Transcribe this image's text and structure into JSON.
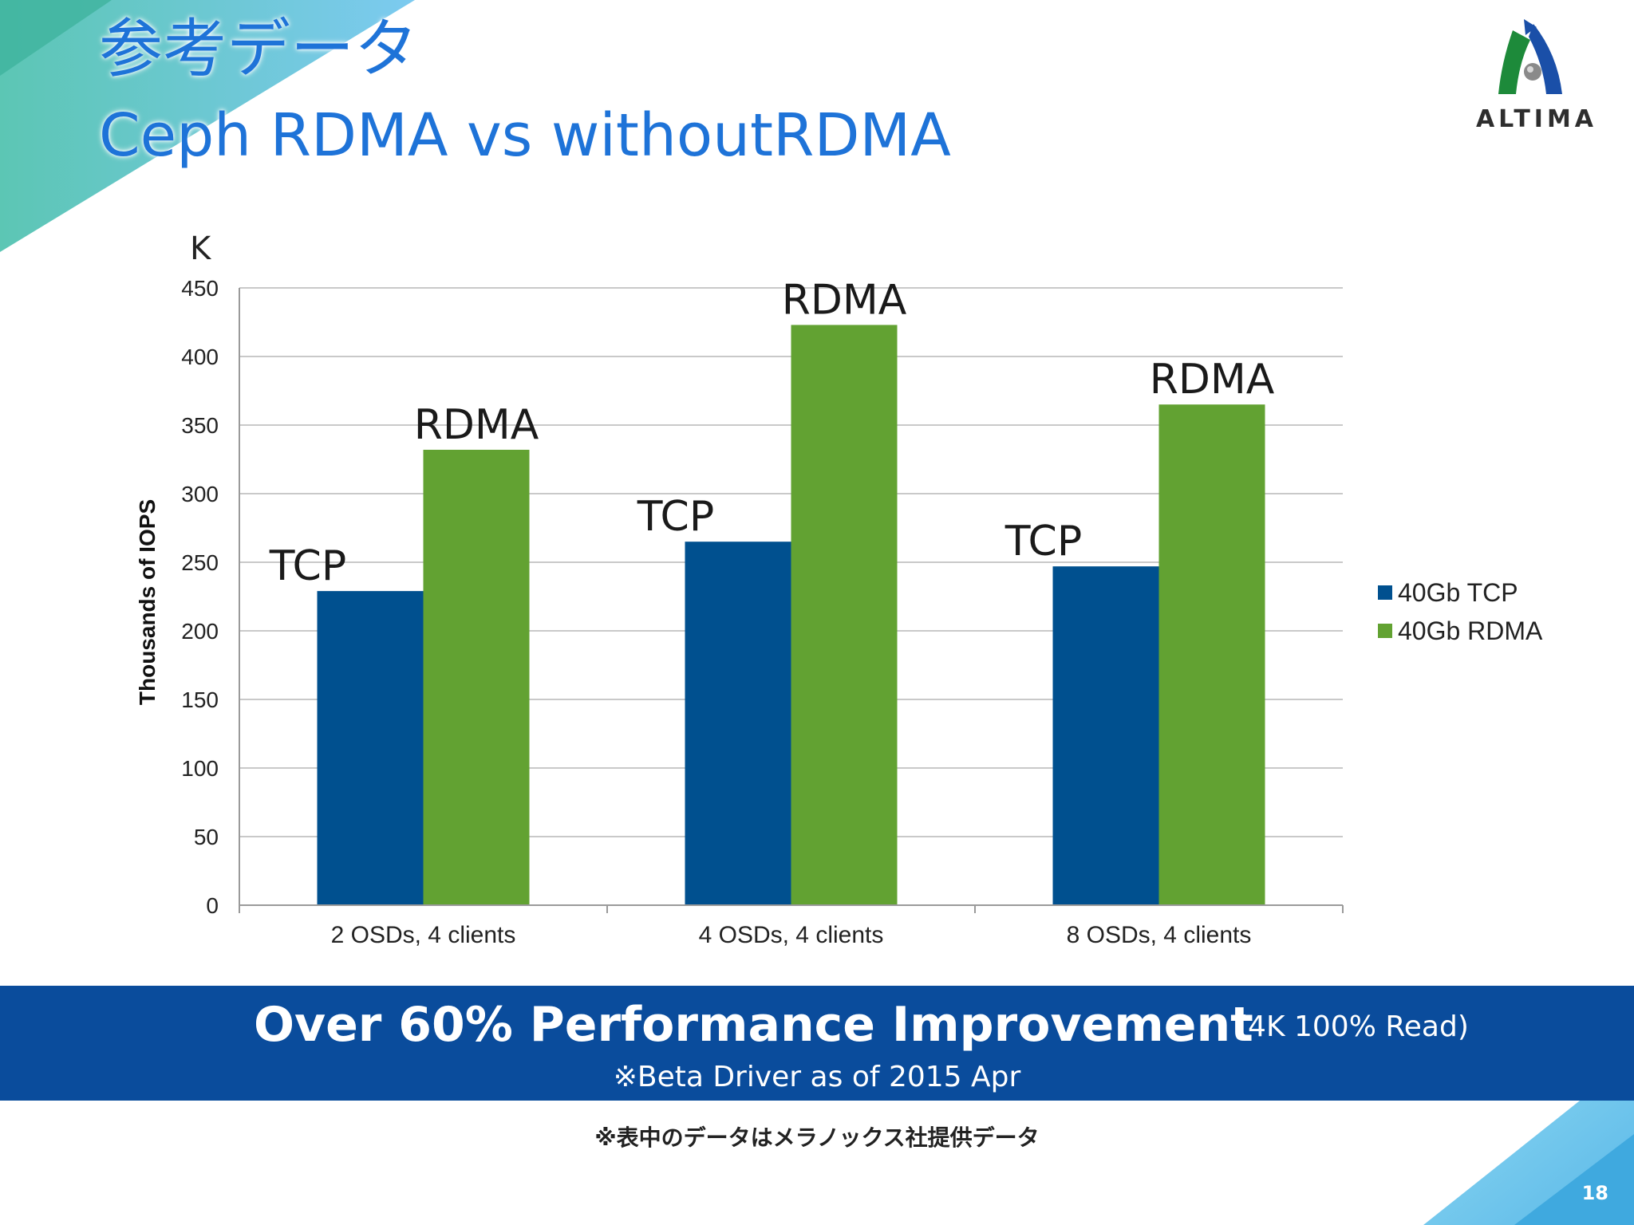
{
  "slide": {
    "title_line1": "参考データ",
    "title_line2": "Ceph RDMA vs withoutRDMA",
    "logo_text": "ALTIMA",
    "banner_main": "Over 60% Performance Improvement",
    "banner_side": "(4K 100% Read)",
    "banner_sub": "※Beta Driver as of 2015 Apr",
    "footnote": "※表中のデータはメラノックス社提供データ",
    "page_number": "18",
    "colors": {
      "title": "#1e73d8",
      "banner": "#0a4c9c",
      "tcp": "#00508f",
      "rdma": "#62a232"
    }
  },
  "chart_data": {
    "type": "bar",
    "unit_label": "K",
    "ylabel": "Thousands of IOPS",
    "xlabel": "",
    "ylim": [
      0,
      450
    ],
    "yticks": [
      0,
      50,
      100,
      150,
      200,
      250,
      300,
      350,
      400,
      450
    ],
    "grid": true,
    "legend_position": "right",
    "categories": [
      "2 OSDs, 4 clients",
      "4 OSDs, 4 clients",
      "8 OSDs, 4 clients"
    ],
    "series": [
      {
        "name": "40Gb TCP",
        "values": [
          229,
          265,
          247
        ],
        "color": "#00508f",
        "bar_label": "TCP"
      },
      {
        "name": "40Gb RDMA",
        "values": [
          332,
          423,
          365
        ],
        "color": "#62a232",
        "bar_label": "RDMA"
      }
    ]
  }
}
